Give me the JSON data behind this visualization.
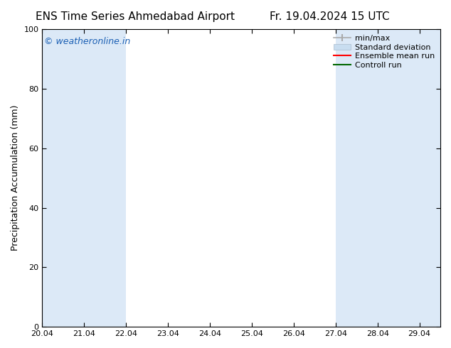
{
  "title_left": "ENS Time Series Ahmedabad Airport",
  "title_right": "Fr. 19.04.2024 15 UTC",
  "ylabel": "Precipitation Accumulation (mm)",
  "watermark": "© weatheronline.in",
  "watermark_color": "#1a5fb4",
  "ylim": [
    0,
    100
  ],
  "xlim_min": 0,
  "xlim_max": 9.5,
  "xtick_positions": [
    0,
    1,
    2,
    3,
    4,
    5,
    6,
    7,
    8,
    9
  ],
  "xtick_labels": [
    "20.04",
    "21.04",
    "22.04",
    "23.04",
    "24.04",
    "25.04",
    "26.04",
    "27.04",
    "28.04",
    "29.04"
  ],
  "ytick_labels": [
    "0",
    "20",
    "40",
    "60",
    "80",
    "100"
  ],
  "ytick_positions": [
    0,
    20,
    40,
    60,
    80,
    100
  ],
  "shaded_bands": [
    {
      "xmin": 0,
      "xmax": 2,
      "color": "#dce9f7"
    },
    {
      "xmin": 7,
      "xmax": 9.5,
      "color": "#dce9f7"
    }
  ],
  "legend_items": [
    {
      "label": "min/max",
      "color": "#aaaaaa",
      "style": "errorbar"
    },
    {
      "label": "Standard deviation",
      "color": "#c8ddf0",
      "style": "band"
    },
    {
      "label": "Ensemble mean run",
      "color": "#ff0000",
      "style": "line"
    },
    {
      "label": "Controll run",
      "color": "#006600",
      "style": "line"
    }
  ],
  "bg_color": "#ffffff",
  "plot_bg_color": "#ffffff",
  "border_color": "#000000",
  "title_fontsize": 11,
  "axis_label_fontsize": 9,
  "tick_fontsize": 8,
  "watermark_fontsize": 9,
  "legend_fontsize": 8
}
